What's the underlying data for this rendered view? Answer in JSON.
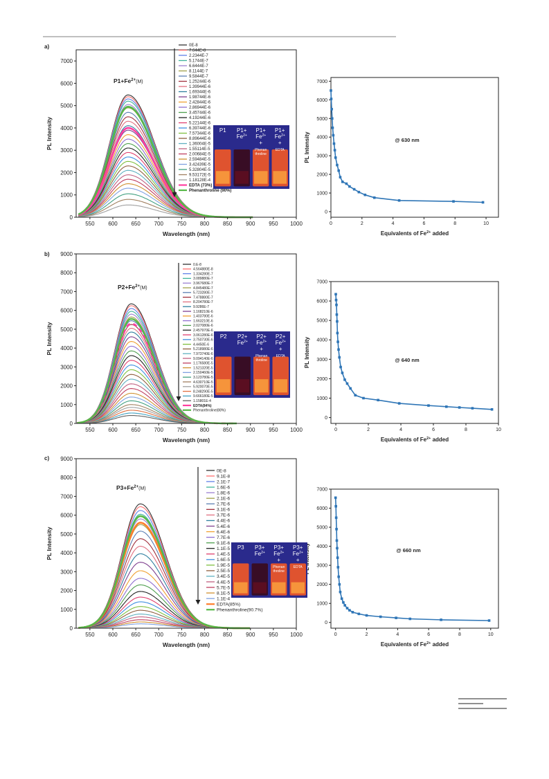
{
  "panels": [
    {
      "panel_label": "a)",
      "emission": {
        "type": "line",
        "title": "P1+Fe",
        "title_sup": "2+",
        "title_suffix": "(M)",
        "xlabel": "Wavelength (nm)",
        "ylabel": "PL Intensity",
        "xlim": [
          520,
          1000
        ],
        "ylim": [
          0,
          7500
        ],
        "xticks": [
          550,
          600,
          650,
          700,
          750,
          800,
          850,
          900,
          950,
          1000
        ],
        "yticks": [
          0,
          1000,
          2000,
          3000,
          4000,
          5000,
          6000,
          7000
        ],
        "peak_x": 633,
        "sigma_left": 40,
        "sigma_right": 58,
        "start_x": 525,
        "end_x": 905,
        "series": [
          {
            "name": "0E-8",
            "peak": 5480,
            "color": "#333333"
          },
          {
            "name": "7.644E-8",
            "peak": 5400,
            "color": "#ff6f6f"
          },
          {
            "name": "2.2344E-7",
            "peak": 5300,
            "color": "#5f80e8"
          },
          {
            "name": "5.1744E-7",
            "peak": 5200,
            "color": "#3fb39a"
          },
          {
            "name": "6.6444E-7",
            "peak": 5050,
            "color": "#9a7fd1"
          },
          {
            "name": "8.1144E-7",
            "peak": 4900,
            "color": "#a0a04a"
          },
          {
            "name": "9.5844E-7",
            "peak": 4700,
            "color": "#5b7fb3"
          },
          {
            "name": "1.25244E-6",
            "peak": 4500,
            "color": "#a0303c"
          },
          {
            "name": "1.39944E-6",
            "peak": 4300,
            "color": "#e07080"
          },
          {
            "name": "1.69344E-6",
            "peak": 4100,
            "color": "#2f7f9f"
          },
          {
            "name": "1.98744E-6",
            "peak": 3900,
            "color": "#7f3f8f"
          },
          {
            "name": "2.42844E-6",
            "peak": 3700,
            "color": "#f0a030"
          },
          {
            "name": "2.86944E-6",
            "peak": 3500,
            "color": "#8f6fd0"
          },
          {
            "name": "3.45744E-6",
            "peak": 3300,
            "color": "#4f9f4f"
          },
          {
            "name": "4.19244E-6",
            "peak": 3100,
            "color": "#222222"
          },
          {
            "name": "5.22144E-6",
            "peak": 2900,
            "color": "#e0406f"
          },
          {
            "name": "6.39744E-6",
            "peak": 2700,
            "color": "#3f8fe0"
          },
          {
            "name": "7.57344E-6",
            "peak": 2500,
            "color": "#7fbf3f"
          },
          {
            "name": "8.89644E-6",
            "peak": 2300,
            "color": "#8f5f3f"
          },
          {
            "name": "1.36004E-5",
            "peak": 2100,
            "color": "#5fb0c0"
          },
          {
            "name": "1.55114E-5",
            "peak": 1900,
            "color": "#c06080"
          },
          {
            "name": "2.00684E-5",
            "peak": 1700,
            "color": "#bf3f5f"
          },
          {
            "name": "2.59484E-5",
            "peak": 1500,
            "color": "#d09030"
          },
          {
            "name": "3.42439E-5",
            "peak": 1300,
            "color": "#7fa0e0"
          },
          {
            "name": "5.32804E-5",
            "peak": 1050,
            "color": "#40a080"
          },
          {
            "name": "9.53172E-5",
            "peak": 800,
            "color": "#a08060"
          },
          {
            "name": "1.18128E-4",
            "peak": 550,
            "color": "#9f9f9f"
          },
          {
            "name": "EDTA (73%)",
            "peak": 4000,
            "color": "#ff3fa0",
            "width": 2.6,
            "bold": true
          },
          {
            "name": "Phenanthroline (90%)",
            "peak": 4950,
            "color": "#58b848",
            "width": 2.6,
            "bold": true
          }
        ]
      },
      "titration": {
        "type": "line",
        "annotation": "@ 630 nm",
        "xlabel_main": "Equivalents of Fe",
        "xlabel_sup": "2+",
        "xlabel_tail": " added",
        "ylabel": "PL Intensity",
        "xlim": [
          0,
          10.8
        ],
        "ylim": [
          -300,
          7200
        ],
        "xticks": [
          0,
          2,
          4,
          6,
          8,
          10
        ],
        "yticks": [
          0,
          1000,
          2000,
          3000,
          4000,
          5000,
          6000,
          7000
        ],
        "x": [
          0,
          0.02,
          0.05,
          0.08,
          0.11,
          0.15,
          0.2,
          0.25,
          0.3,
          0.4,
          0.5,
          0.6,
          0.75,
          1.0,
          1.2,
          1.5,
          1.8,
          2.2,
          2.8,
          4.4,
          7.9,
          9.8
        ],
        "y": [
          6500,
          6050,
          5500,
          5000,
          4500,
          4100,
          3650,
          3300,
          2900,
          2500,
          2200,
          1850,
          1600,
          1500,
          1350,
          1200,
          1050,
          900,
          750,
          600,
          550,
          500
        ]
      }
    },
    {
      "panel_label": "b)",
      "emission": {
        "type": "line",
        "title": "P2+Fe",
        "title_sup": "2+",
        "title_suffix": "(M)",
        "xlabel": "Wavelength (nm)",
        "ylabel": "PL Intensity",
        "xlim": [
          520,
          1000
        ],
        "ylim": [
          0,
          9000
        ],
        "xticks": [
          550,
          600,
          650,
          700,
          750,
          800,
          850,
          900,
          950,
          1000
        ],
        "yticks": [
          0,
          1000,
          2000,
          3000,
          4000,
          5000,
          6000,
          7000,
          8000,
          9000
        ],
        "peak_x": 640,
        "sigma_left": 36,
        "sigma_right": 52,
        "start_x": 522,
        "end_x": 870,
        "series": [
          {
            "name": "0.E-8",
            "peak": 6350,
            "color": "#333333"
          },
          {
            "name": "4.564880E-8",
            "peak": 6250,
            "color": "#ff6f6f"
          },
          {
            "name": "1.334280E-7",
            "peak": 6100,
            "color": "#5f80e8"
          },
          {
            "name": "3.089880E-7",
            "peak": 5950,
            "color": "#3fb39a"
          },
          {
            "name": "3.967680E-7",
            "peak": 5800,
            "color": "#9a7fd1"
          },
          {
            "name": "4.845480E-7",
            "peak": 5650,
            "color": "#a0a04a"
          },
          {
            "name": "5.723280E-7",
            "peak": 5450,
            "color": "#5b7fb3"
          },
          {
            "name": "7.478880E-7",
            "peak": 5250,
            "color": "#a0303c"
          },
          {
            "name": "8.204780E-7",
            "peak": 5050,
            "color": "#e07080"
          },
          {
            "name": "9.9286E-7",
            "peak": 4850,
            "color": "#2f7f9f"
          },
          {
            "name": "1.168210E-6",
            "peak": 4600,
            "color": "#7f3f8f"
          },
          {
            "name": "1.403780E-6",
            "peak": 4350,
            "color": "#f0a030"
          },
          {
            "name": "1.663210E-6",
            "peak": 4100,
            "color": "#8f6fd0"
          },
          {
            "name": "2.027080E-6",
            "peak": 3850,
            "color": "#4f9f4f"
          },
          {
            "name": "2.457970E-6",
            "peak": 3600,
            "color": "#222222"
          },
          {
            "name": "3.061280E-6",
            "peak": 3350,
            "color": "#e0406f"
          },
          {
            "name": "3.750730E-6",
            "peak": 3100,
            "color": "#3f8fe0"
          },
          {
            "name": "4.4450E-6",
            "peak": 2850,
            "color": "#7fbf3f"
          },
          {
            "name": "5.218980E-6",
            "peak": 2600,
            "color": "#8f5f3f"
          },
          {
            "name": "7.973740E-6",
            "peak": 2350,
            "color": "#5fb0c0"
          },
          {
            "name": "9.094140E-6",
            "peak": 2100,
            "color": "#c06080"
          },
          {
            "name": "1.176580E-5",
            "peak": 1850,
            "color": "#bf3f5f"
          },
          {
            "name": "1.521320E-5",
            "peak": 1600,
            "color": "#d09030"
          },
          {
            "name": "2.150460E-5",
            "peak": 1400,
            "color": "#7fa0e0"
          },
          {
            "name": "3.123780E-5",
            "peak": 1200,
            "color": "#40a080"
          },
          {
            "name": "4.630710E-5",
            "peak": 1000,
            "color": "#a08060"
          },
          {
            "name": "5.920070E-5",
            "peak": 850,
            "color": "#9f9f9f"
          },
          {
            "name": "8.248290E-5",
            "peak": 700,
            "color": "#e07040"
          },
          {
            "name": "9.666180E-5",
            "peak": 550,
            "color": "#40a0c0"
          },
          {
            "name": "1.15801E-4",
            "peak": 420,
            "color": "#606060"
          },
          {
            "name": "EDTA(84%)",
            "peak": 5300,
            "color": "#ff3fa0",
            "width": 2.6,
            "bold": true,
            "dash": "6,5"
          },
          {
            "name": "Phenanthroline(88%)",
            "peak": 5550,
            "color": "#58b848",
            "width": 2.4,
            "bold": false
          }
        ]
      },
      "titration": {
        "type": "line",
        "annotation": "@ 640 nm",
        "xlabel_main": "Equivalents of Fe",
        "xlabel_sup": "2+",
        "xlabel_tail": " added",
        "ylabel": "PL Intensity",
        "xlim": [
          -0.3,
          10
        ],
        "ylim": [
          -300,
          7000
        ],
        "xticks": [
          0,
          2,
          4,
          6,
          8,
          10
        ],
        "yticks": [
          0,
          1000,
          2000,
          3000,
          4000,
          5000,
          6000,
          7000
        ],
        "x": [
          0,
          0.02,
          0.04,
          0.06,
          0.08,
          0.1,
          0.13,
          0.17,
          0.22,
          0.3,
          0.4,
          0.55,
          0.7,
          0.9,
          1.2,
          1.7,
          2.6,
          3.9,
          5.7,
          6.8,
          7.6,
          8.4,
          9.6
        ],
        "y": [
          6350,
          6050,
          5800,
          5300,
          4950,
          4350,
          3900,
          3500,
          3100,
          2600,
          2300,
          1950,
          1750,
          1500,
          1150,
          1000,
          900,
          730,
          620,
          560,
          520,
          480,
          420
        ]
      }
    },
    {
      "panel_label": "c)",
      "emission": {
        "type": "line",
        "title": "P3+Fe",
        "title_sup": "2+",
        "title_suffix": "(M)",
        "xlabel": "Wavelength (nm)",
        "ylabel": "PL Intensity",
        "xlim": [
          520,
          1000
        ],
        "ylim": [
          0,
          9000
        ],
        "xticks": [
          550,
          600,
          650,
          700,
          750,
          800,
          850,
          900,
          950,
          1000
        ],
        "yticks": [
          0,
          1000,
          2000,
          3000,
          4000,
          5000,
          6000,
          7000,
          8000,
          9000
        ],
        "peak_x": 660,
        "sigma_left": 40,
        "sigma_right": 54,
        "start_x": 525,
        "end_x": 900,
        "series": [
          {
            "name": "0E-8",
            "peak": 6600,
            "color": "#333333"
          },
          {
            "name": "9.1E-8",
            "peak": 6450,
            "color": "#ff6f6f"
          },
          {
            "name": "2.1E-7",
            "peak": 6250,
            "color": "#5f80e8"
          },
          {
            "name": "1.6E-6",
            "peak": 6050,
            "color": "#3fb39a"
          },
          {
            "name": "1.8E-6",
            "peak": 5800,
            "color": "#9a7fd1"
          },
          {
            "name": "2.1E-6",
            "peak": 5500,
            "color": "#a0a04a"
          },
          {
            "name": "2.7E-6",
            "peak": 5150,
            "color": "#5b7fb3"
          },
          {
            "name": "3.1E-6",
            "peak": 4750,
            "color": "#a0303c"
          },
          {
            "name": "3.7E-6",
            "peak": 4350,
            "color": "#e07080"
          },
          {
            "name": "4.4E-6",
            "peak": 3950,
            "color": "#2f7f9f"
          },
          {
            "name": "5.4E-6",
            "peak": 3500,
            "color": "#7f3f8f"
          },
          {
            "name": "6.4E-6",
            "peak": 3050,
            "color": "#f0a030"
          },
          {
            "name": "7.7E-6",
            "peak": 2650,
            "color": "#8f6fd0"
          },
          {
            "name": "9.1E-6",
            "peak": 2300,
            "color": "#4f9f4f"
          },
          {
            "name": "1.1E-5",
            "peak": 1950,
            "color": "#222222"
          },
          {
            "name": "1.4E-5",
            "peak": 1650,
            "color": "#e0406f"
          },
          {
            "name": "1.6E-5",
            "peak": 1400,
            "color": "#3f8fe0"
          },
          {
            "name": "1.9E-5",
            "peak": 1150,
            "color": "#7fbf3f"
          },
          {
            "name": "2.5E-5",
            "peak": 950,
            "color": "#8f5f3f"
          },
          {
            "name": "3.4E-5",
            "peak": 750,
            "color": "#5fb0c0"
          },
          {
            "name": "4.4E-5",
            "peak": 600,
            "color": "#c06080"
          },
          {
            "name": "5.7E-5",
            "peak": 450,
            "color": "#bf3f5f"
          },
          {
            "name": "8.1E-5",
            "peak": 330,
            "color": "#d09030"
          },
          {
            "name": "1.1E-4",
            "peak": 230,
            "color": "#7fa0e0"
          },
          {
            "name": "EDTA(85%)",
            "peak": 5600,
            "color": "#ff7f2a",
            "width": 2.6,
            "bold": false
          },
          {
            "name": "Phenanthroline(90.7%)",
            "peak": 5950,
            "color": "#58b848",
            "width": 2.6,
            "bold": false
          }
        ]
      },
      "titration": {
        "type": "line",
        "annotation": "@ 660 nm",
        "xlabel_main": "Equivalents of Fe",
        "xlabel_sup": "2+",
        "xlabel_tail": " added",
        "ylabel": "PL Intensity",
        "xlim": [
          -0.3,
          10.5
        ],
        "ylim": [
          -300,
          7000
        ],
        "xticks": [
          0,
          2,
          4,
          6,
          8,
          10
        ],
        "yticks": [
          0,
          1000,
          2000,
          3000,
          4000,
          5000,
          6000,
          7000
        ],
        "x": [
          0,
          0.02,
          0.04,
          0.06,
          0.08,
          0.1,
          0.13,
          0.16,
          0.2,
          0.25,
          0.3,
          0.4,
          0.5,
          0.6,
          0.75,
          0.9,
          1.1,
          1.5,
          2.0,
          2.9,
          3.9,
          4.8,
          6.8,
          9.9
        ],
        "y": [
          6550,
          6100,
          5500,
          4900,
          4300,
          3900,
          3400,
          2900,
          2400,
          2000,
          1600,
          1250,
          1050,
          900,
          750,
          640,
          540,
          450,
          370,
          300,
          240,
          190,
          140,
          100
        ]
      }
    }
  ],
  "insets": [
    {
      "labels": [
        [
          "P1"
        ],
        [
          "P1+",
          "Fe2+"
        ],
        [
          "P1+",
          "Fe2+",
          "+",
          "Phenan",
          "throline"
        ],
        [
          "P1+",
          "Fe2+",
          "+",
          "EDTA"
        ]
      ]
    },
    {
      "labels": [
        [
          "P2"
        ],
        [
          "P2+",
          "Fe2+"
        ],
        [
          "P2+",
          "Fe2+",
          "+",
          "Phenan",
          "throline"
        ],
        [
          "P2+",
          "Fe2+",
          "+",
          "EDTA"
        ]
      ]
    },
    {
      "labels": [
        [
          "P3"
        ],
        [
          "P3+",
          "Fe2+"
        ],
        [
          "P3+",
          "Fe2+",
          "+",
          "Phenan",
          "throline"
        ],
        [
          "P3+",
          "Fe2+",
          "+",
          "EDTA"
        ]
      ]
    }
  ],
  "colors": {
    "axis": "#222222",
    "titration": "#2e75b6",
    "inset_bg": "#2a2a8c",
    "vial_glow": "#ff5a1f"
  }
}
